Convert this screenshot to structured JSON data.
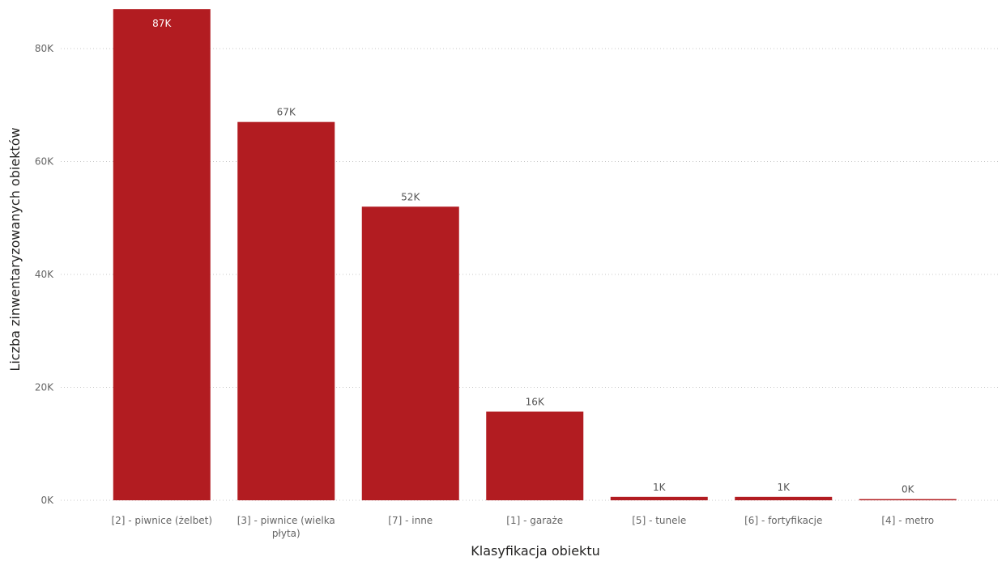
{
  "chart_data": {
    "type": "bar",
    "title": "",
    "xlabel": "Klasyfikacja obiektu",
    "ylabel": "Liczba zinwentaryzowanych obiektów",
    "ylim": [
      0,
      88000
    ],
    "yticks": [
      0,
      20000,
      40000,
      60000,
      80000
    ],
    "ytick_labels": [
      "0K",
      "20K",
      "40K",
      "60K",
      "80K"
    ],
    "grid": "horizontal",
    "legend": "none",
    "categories": [
      "[2] - piwnice (żelbet)",
      "[3] - piwnice (wielka płyta)",
      "[7] - inne",
      "[1] - garaże",
      "[5] - tunele",
      "[6] - fortyfikacje",
      "[4] - metro"
    ],
    "category_lines": [
      [
        "[2] - piwnice (żelbet)"
      ],
      [
        "[3] - piwnice (wielka",
        "płyta)"
      ],
      [
        "[7] - inne"
      ],
      [
        "[1] - garaże"
      ],
      [
        "[5] - tunele"
      ],
      [
        "[6] - fortyfikacje"
      ],
      [
        "[4] - metro"
      ]
    ],
    "values": [
      87000,
      67000,
      52000,
      15700,
      600,
      600,
      200
    ],
    "data_labels": [
      "87K",
      "67K",
      "52K",
      "16K",
      "1K",
      "1K",
      "0K"
    ],
    "colors": {
      "bar": "#B21C21"
    }
  }
}
